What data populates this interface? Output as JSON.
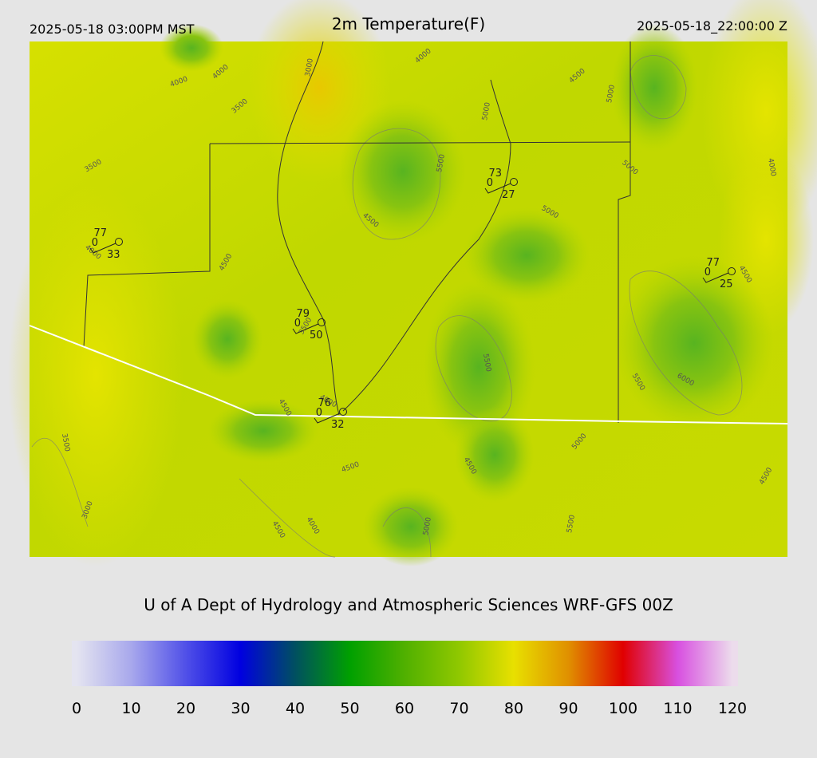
{
  "header": {
    "local_time": "2025-05-18 03:00PM MST",
    "title": "2m Temperature(F)",
    "utc_time": "2025-05-18_22:00:00 Z"
  },
  "stations": [
    {
      "temperature": 77,
      "cloud": 0,
      "dewpoint": 33
    },
    {
      "temperature": 73,
      "cloud": 0,
      "dewpoint": 27
    },
    {
      "temperature": 77,
      "cloud": 0,
      "dewpoint": 25
    },
    {
      "temperature": 79,
      "cloud": 0,
      "dewpoint": 50
    },
    {
      "temperature": 76,
      "cloud": 0,
      "dewpoint": 32
    }
  ],
  "contour_labels": [
    4000,
    4000,
    3500,
    3500,
    3000,
    4000,
    4500,
    5000,
    5000,
    5500,
    5000,
    4000,
    4500,
    5000,
    4500,
    4000,
    4500,
    3500,
    5500,
    5500,
    6000,
    4000,
    4500,
    3500,
    5000,
    4500,
    4500,
    4500,
    3000,
    4000,
    4500,
    5000,
    5500
  ],
  "footer": {
    "title": "U of A Dept of Hydrology and Atmospheric Sciences WRF-GFS 00Z"
  },
  "colorbar": {
    "range": [
      0,
      120
    ],
    "ticks": [
      0,
      10,
      20,
      30,
      40,
      50,
      60,
      70,
      80,
      90,
      100,
      110,
      120
    ],
    "colors": [
      "#e4e4f0",
      "#a8a8ec",
      "#5050e8",
      "#0000e0",
      "#005060",
      "#00a000",
      "#50b000",
      "#90c800",
      "#e8e000",
      "#e09000",
      "#e00000",
      "#d850e0",
      "#ecdcec"
    ]
  }
}
